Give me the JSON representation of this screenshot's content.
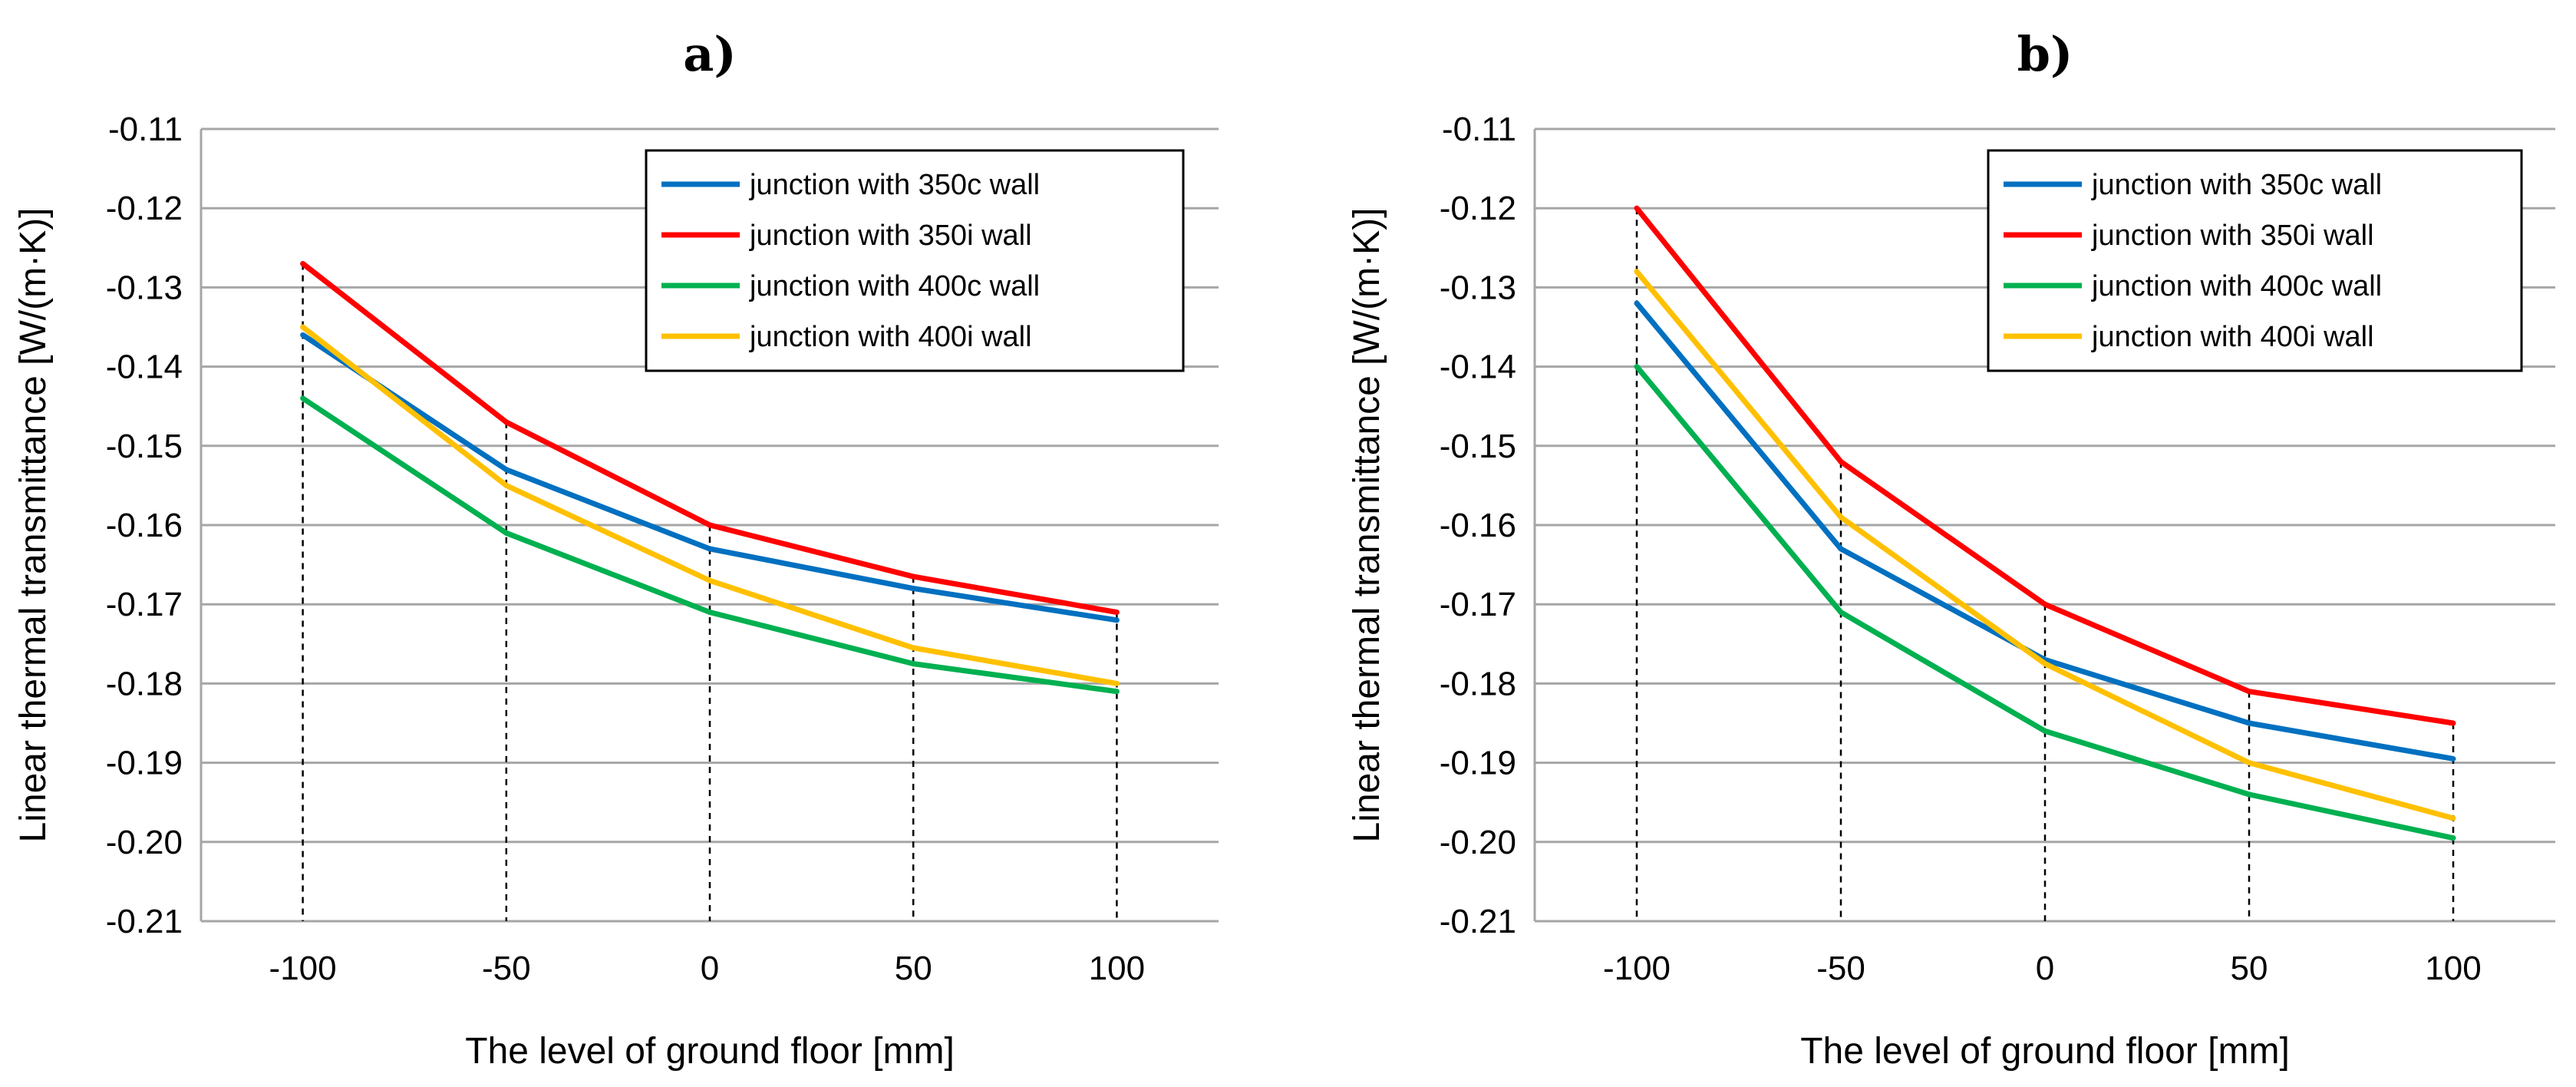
{
  "chart_data": [
    {
      "type": "line",
      "title": "a)",
      "xlabel": "The level of ground floor [mm]",
      "ylabel": "Linear thermal transmittance [W/(m·K)]",
      "x": [
        -100,
        -50,
        0,
        50,
        100
      ],
      "x_tick_labels": [
        "-100",
        "-50",
        "0",
        "50",
        "100"
      ],
      "ylim": [
        -0.21,
        -0.11
      ],
      "y_ticks": [
        -0.11,
        -0.12,
        -0.13,
        -0.14,
        -0.15,
        -0.16,
        -0.17,
        -0.18,
        -0.19,
        -0.2,
        -0.21
      ],
      "y_tick_labels": [
        "-0.11",
        "-0.12",
        "-0.13",
        "-0.14",
        "-0.15",
        "-0.16",
        "-0.17",
        "-0.18",
        "-0.19",
        "-0.20",
        "-0.21"
      ],
      "grid": true,
      "legend_position": "top-right",
      "series": [
        {
          "name": "junction with 350c wall",
          "color": "#0070c0",
          "values": [
            -0.136,
            -0.153,
            -0.163,
            -0.168,
            -0.172
          ]
        },
        {
          "name": "junction with 350i wall",
          "color": "#ff0000",
          "values": [
            -0.127,
            -0.147,
            -0.16,
            -0.1665,
            -0.171
          ]
        },
        {
          "name": "junction with 400c wall",
          "color": "#00b050",
          "values": [
            -0.144,
            -0.161,
            -0.171,
            -0.1775,
            -0.181
          ]
        },
        {
          "name": "junction with 400i wall",
          "color": "#ffc000",
          "values": [
            -0.135,
            -0.155,
            -0.167,
            -0.1755,
            -0.18
          ]
        }
      ]
    },
    {
      "type": "line",
      "title": "b)",
      "xlabel": "The level of ground floor [mm]",
      "ylabel": "Linear thermal transmittance [W/(m·K)]",
      "x": [
        -100,
        -50,
        0,
        50,
        100
      ],
      "x_tick_labels": [
        "-100",
        "-50",
        "0",
        "50",
        "100"
      ],
      "ylim": [
        -0.21,
        -0.11
      ],
      "y_ticks": [
        -0.11,
        -0.12,
        -0.13,
        -0.14,
        -0.15,
        -0.16,
        -0.17,
        -0.18,
        -0.19,
        -0.2,
        -0.21
      ],
      "y_tick_labels": [
        "-0.11",
        "-0.12",
        "-0.13",
        "-0.14",
        "-0.15",
        "-0.16",
        "-0.17",
        "-0.18",
        "-0.19",
        "-0.20",
        "-0.21"
      ],
      "grid": true,
      "legend_position": "top-right",
      "series": [
        {
          "name": "junction with 350c wall",
          "color": "#0070c0",
          "values": [
            -0.132,
            -0.163,
            -0.177,
            -0.185,
            -0.1895
          ]
        },
        {
          "name": "junction with 350i wall",
          "color": "#ff0000",
          "values": [
            -0.12,
            -0.152,
            -0.17,
            -0.181,
            -0.185
          ]
        },
        {
          "name": "junction with 400c wall",
          "color": "#00b050",
          "values": [
            -0.14,
            -0.171,
            -0.186,
            -0.194,
            -0.1995
          ]
        },
        {
          "name": "junction with 400i wall",
          "color": "#ffc000",
          "values": [
            -0.128,
            -0.159,
            -0.1775,
            -0.19,
            -0.197
          ]
        }
      ]
    }
  ]
}
